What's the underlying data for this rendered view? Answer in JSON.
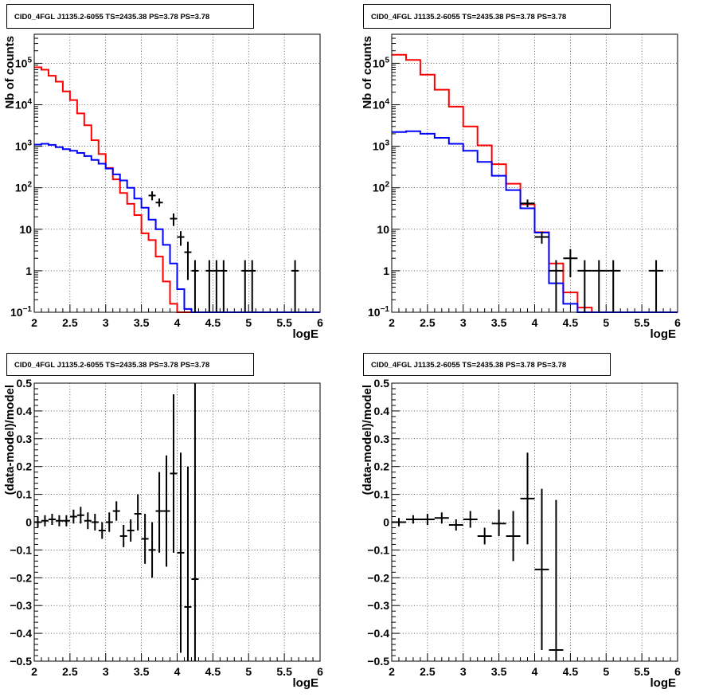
{
  "colors": {
    "data": "#000000",
    "model_total": "#ff0000",
    "model_component": "#0000ff",
    "grid": "#000000"
  },
  "chart_data": [
    {
      "id": "counts_fine",
      "type": "line",
      "title": "CID0_4FGL J1135.2-6055 TS=2435.38 PS=3.78 PS=3.78",
      "xlabel": "logE",
      "ylabel": "Nb of counts",
      "yscale": "log",
      "xlim": [
        2,
        6
      ],
      "ylim": [
        0.1,
        500000
      ],
      "grid": true,
      "xticks": [
        "2",
        "2.5",
        "3",
        "3.5",
        "4",
        "4.5",
        "5",
        "5.5",
        "6"
      ],
      "yticks": [
        {
          "value": 0.1,
          "base": "10",
          "exp": "−1"
        },
        {
          "value": 1,
          "label": "1"
        },
        {
          "value": 10,
          "label": "10"
        },
        {
          "value": 100,
          "base": "10",
          "exp": "2"
        },
        {
          "value": 1000,
          "base": "10",
          "exp": "3"
        },
        {
          "value": 10000,
          "base": "10",
          "exp": "4"
        },
        {
          "value": 100000,
          "base": "10",
          "exp": "5"
        }
      ],
      "bin_edges": [
        2.0,
        2.1,
        2.2,
        2.3,
        2.4,
        2.5,
        2.6,
        2.7,
        2.8,
        2.9,
        3.0,
        3.1,
        3.2,
        3.3,
        3.4,
        3.5,
        3.6,
        3.7,
        3.8,
        3.9,
        4.0,
        4.1,
        4.2,
        4.3,
        4.4,
        4.5,
        4.6,
        4.7,
        4.8,
        4.9,
        5.0,
        5.1,
        5.2,
        5.3,
        5.4,
        5.5,
        5.6,
        5.7,
        5.8,
        5.9,
        6.0
      ],
      "series": [
        {
          "name": "model total",
          "color_key": "model_total",
          "values": [
            80000,
            70000,
            50000,
            36000,
            21000,
            13000,
            6200,
            3200,
            1400,
            650,
            300,
            160,
            75,
            41,
            22,
            8,
            5.5,
            2.2,
            0.55,
            0.16,
            0.1,
            0.1,
            0.1,
            0.1,
            0.1,
            0.1,
            0.1,
            0.1,
            0.1,
            0.1,
            0.1,
            0.1,
            0.1,
            0.1,
            0.1,
            0.1,
            0.1,
            0.1,
            0.1,
            0.1
          ]
        },
        {
          "name": "model component",
          "color_key": "model_component",
          "values": [
            1100,
            1150,
            1080,
            950,
            850,
            780,
            690,
            580,
            470,
            380,
            290,
            210,
            150,
            100,
            55,
            33,
            17,
            10,
            4.2,
            1.5,
            0.36,
            0.12,
            0.1,
            0.1,
            0.1,
            0.1,
            0.1,
            0.1,
            0.1,
            0.1,
            0.1,
            0.1,
            0.1,
            0.1,
            0.1,
            0.1,
            0.1,
            0.1,
            0.1,
            0.1
          ]
        }
      ],
      "data_points": [
        {
          "x": 3.65,
          "y": 65,
          "xerr": 0.05,
          "ylo": 50,
          "yhi": 82
        },
        {
          "x": 3.75,
          "y": 44,
          "xerr": 0.05,
          "ylo": 35,
          "yhi": 55
        },
        {
          "x": 3.95,
          "y": 18,
          "xerr": 0.05,
          "ylo": 12,
          "yhi": 24
        },
        {
          "x": 4.05,
          "y": 6.5,
          "xerr": 0.05,
          "ylo": 4,
          "yhi": 9
        },
        {
          "x": 4.15,
          "y": 2.8,
          "xerr": 0.05,
          "ylo": 0.6,
          "yhi": 5
        },
        {
          "x": 4.25,
          "y": 1.0,
          "xerr": 0.05,
          "ylo": 0.1,
          "yhi": 1.8
        },
        {
          "x": 4.45,
          "y": 1.0,
          "xerr": 0.05,
          "ylo": 0.1,
          "yhi": 1.8
        },
        {
          "x": 4.55,
          "y": 1.0,
          "xerr": 0.05,
          "ylo": 0.1,
          "yhi": 1.8
        },
        {
          "x": 4.65,
          "y": 1.0,
          "xerr": 0.05,
          "ylo": 0.1,
          "yhi": 1.8
        },
        {
          "x": 4.95,
          "y": 1.0,
          "xerr": 0.05,
          "ylo": 0.1,
          "yhi": 1.8
        },
        {
          "x": 5.05,
          "y": 1.0,
          "xerr": 0.05,
          "ylo": 0.1,
          "yhi": 1.8
        },
        {
          "x": 5.65,
          "y": 1.0,
          "xerr": 0.05,
          "ylo": 0.1,
          "yhi": 1.8
        }
      ]
    },
    {
      "id": "counts_coarse",
      "type": "line",
      "title": "CID0_4FGL J1135.2-6055 TS=2435.38 PS=3.78 PS=3.78",
      "xlabel": "logE",
      "ylabel": "Nb of counts",
      "yscale": "log",
      "xlim": [
        2,
        6
      ],
      "ylim": [
        0.1,
        500000
      ],
      "grid": true,
      "xticks": [
        "2",
        "2.5",
        "3",
        "3.5",
        "4",
        "4.5",
        "5",
        "5.5",
        "6"
      ],
      "yticks": [
        {
          "value": 0.1,
          "base": "10",
          "exp": "−1"
        },
        {
          "value": 1,
          "label": "1"
        },
        {
          "value": 10,
          "label": "10"
        },
        {
          "value": 100,
          "base": "10",
          "exp": "2"
        },
        {
          "value": 1000,
          "base": "10",
          "exp": "3"
        },
        {
          "value": 10000,
          "base": "10",
          "exp": "4"
        },
        {
          "value": 100000,
          "base": "10",
          "exp": "5"
        }
      ],
      "bin_edges": [
        2.0,
        2.2,
        2.4,
        2.6,
        2.8,
        3.0,
        3.2,
        3.4,
        3.6,
        3.8,
        4.0,
        4.2,
        4.4,
        4.6,
        4.8,
        5.0,
        5.2,
        5.4,
        5.6,
        5.8,
        6.0
      ],
      "series": [
        {
          "name": "model total",
          "color_key": "model_total",
          "values": [
            160000,
            120000,
            53000,
            23000,
            9000,
            3000,
            1050,
            370,
            125,
            40,
            8.5,
            1.5,
            0.3,
            0.13,
            0.1,
            0.1,
            0.1,
            0.1,
            0.1,
            0.1
          ]
        },
        {
          "name": "model component",
          "color_key": "model_component",
          "values": [
            2200,
            2300,
            2000,
            1600,
            1150,
            780,
            420,
            195,
            88,
            32,
            8.3,
            0.5,
            0.16,
            0.1,
            0.1,
            0.1,
            0.1,
            0.1,
            0.1,
            0.1
          ]
        }
      ],
      "data_points": [
        {
          "x": 3.9,
          "y": 42,
          "xerr": 0.1,
          "ylo": 34,
          "yhi": 52
        },
        {
          "x": 4.1,
          "y": 6.5,
          "xerr": 0.1,
          "ylo": 4.5,
          "yhi": 8.8
        },
        {
          "x": 4.3,
          "y": 1.0,
          "xerr": 0.1,
          "ylo": 0.1,
          "yhi": 1.8
        },
        {
          "x": 4.5,
          "y": 2.0,
          "xerr": 0.1,
          "ylo": 0.7,
          "yhi": 3.3
        },
        {
          "x": 4.7,
          "y": 1.0,
          "xerr": 0.1,
          "ylo": 0.1,
          "yhi": 1.8
        },
        {
          "x": 4.9,
          "y": 1.0,
          "xerr": 0.1,
          "ylo": 0.1,
          "yhi": 1.8
        },
        {
          "x": 5.1,
          "y": 1.0,
          "xerr": 0.1,
          "ylo": 0.1,
          "yhi": 1.8
        },
        {
          "x": 5.7,
          "y": 1.0,
          "xerr": 0.1,
          "ylo": 0.1,
          "yhi": 1.8
        }
      ]
    },
    {
      "id": "residuals_fine",
      "type": "scatter",
      "title": "CID0_4FGL J1135.2-6055 TS=2435.38 PS=3.78 PS=3.78",
      "xlabel": "logE",
      "ylabel": "(data-model)/model",
      "yscale": "linear",
      "xlim": [
        2,
        6
      ],
      "ylim": [
        -0.5,
        0.5
      ],
      "grid": true,
      "xticks": [
        "2",
        "2.5",
        "3",
        "3.5",
        "4",
        "4.5",
        "5",
        "5.5",
        "6"
      ],
      "yticks": [
        {
          "value": -0.5,
          "label": "−0.5"
        },
        {
          "value": -0.4,
          "label": "−0.4"
        },
        {
          "value": -0.3,
          "label": "−0.3"
        },
        {
          "value": -0.2,
          "label": "−0.2"
        },
        {
          "value": -0.1,
          "label": "−0.1"
        },
        {
          "value": 0,
          "label": "0"
        },
        {
          "value": 0.1,
          "label": "0.1"
        },
        {
          "value": 0.2,
          "label": "0.2"
        },
        {
          "value": 0.3,
          "label": "0.3"
        },
        {
          "value": 0.4,
          "label": "0.4"
        },
        {
          "value": 0.5,
          "label": "0.5"
        }
      ],
      "data_points": [
        {
          "x": 2.05,
          "y": 0.0,
          "xerr": 0.05,
          "ylo": -0.02,
          "yhi": 0.02
        },
        {
          "x": 2.15,
          "y": 0.005,
          "xerr": 0.05,
          "ylo": -0.015,
          "yhi": 0.025
        },
        {
          "x": 2.25,
          "y": 0.01,
          "xerr": 0.05,
          "ylo": -0.01,
          "yhi": 0.03
        },
        {
          "x": 2.35,
          "y": 0.005,
          "xerr": 0.05,
          "ylo": -0.015,
          "yhi": 0.025
        },
        {
          "x": 2.45,
          "y": 0.005,
          "xerr": 0.05,
          "ylo": -0.015,
          "yhi": 0.025
        },
        {
          "x": 2.55,
          "y": 0.02,
          "xerr": 0.05,
          "ylo": -0.005,
          "yhi": 0.045
        },
        {
          "x": 2.65,
          "y": 0.025,
          "xerr": 0.05,
          "ylo": -0.005,
          "yhi": 0.055
        },
        {
          "x": 2.75,
          "y": 0.005,
          "xerr": 0.05,
          "ylo": -0.025,
          "yhi": 0.035
        },
        {
          "x": 2.85,
          "y": 0.0,
          "xerr": 0.05,
          "ylo": -0.03,
          "yhi": 0.03
        },
        {
          "x": 2.95,
          "y": -0.03,
          "xerr": 0.05,
          "ylo": -0.06,
          "yhi": 0.0
        },
        {
          "x": 3.05,
          "y": 0.0,
          "xerr": 0.05,
          "ylo": -0.035,
          "yhi": 0.035
        },
        {
          "x": 3.15,
          "y": 0.04,
          "xerr": 0.05,
          "ylo": 0.005,
          "yhi": 0.075
        },
        {
          "x": 3.25,
          "y": -0.05,
          "xerr": 0.05,
          "ylo": -0.09,
          "yhi": -0.01
        },
        {
          "x": 3.35,
          "y": -0.03,
          "xerr": 0.05,
          "ylo": -0.07,
          "yhi": 0.01
        },
        {
          "x": 3.45,
          "y": 0.03,
          "xerr": 0.05,
          "ylo": -0.03,
          "yhi": 0.1
        },
        {
          "x": 3.55,
          "y": -0.06,
          "xerr": 0.05,
          "ylo": -0.15,
          "yhi": 0.03
        },
        {
          "x": 3.65,
          "y": -0.1,
          "xerr": 0.05,
          "ylo": -0.2,
          "yhi": 0.0
        },
        {
          "x": 3.75,
          "y": 0.04,
          "xerr": 0.05,
          "ylo": -0.11,
          "yhi": 0.18
        },
        {
          "x": 3.85,
          "y": 0.04,
          "xerr": 0.05,
          "ylo": -0.16,
          "yhi": 0.24
        },
        {
          "x": 3.95,
          "y": 0.175,
          "xerr": 0.05,
          "ylo": -0.11,
          "yhi": 0.46
        },
        {
          "x": 4.05,
          "y": -0.11,
          "xerr": 0.05,
          "ylo": -0.47,
          "yhi": 0.25
        },
        {
          "x": 4.15,
          "y": -0.305,
          "xerr": 0.05,
          "ylo": -0.5,
          "yhi": 0.2
        },
        {
          "x": 4.25,
          "y": -0.205,
          "xerr": 0.05,
          "ylo": -0.5,
          "yhi": 0.5
        }
      ]
    },
    {
      "id": "residuals_coarse",
      "type": "scatter",
      "title": "CID0_4FGL J1135.2-6055 TS=2435.38 PS=3.78 PS=3.78",
      "xlabel": "logE",
      "ylabel": "(data-model)/model",
      "yscale": "linear",
      "xlim": [
        2,
        6
      ],
      "ylim": [
        -0.5,
        0.5
      ],
      "grid": true,
      "xticks": [
        "2",
        "2.5",
        "3",
        "3.5",
        "4",
        "4.5",
        "5",
        "5.5",
        "6"
      ],
      "yticks": [
        {
          "value": -0.5,
          "label": "−0.5"
        },
        {
          "value": -0.4,
          "label": "−0.4"
        },
        {
          "value": -0.3,
          "label": "−0.3"
        },
        {
          "value": -0.2,
          "label": "−0.2"
        },
        {
          "value": -0.1,
          "label": "−0.1"
        },
        {
          "value": 0,
          "label": "0"
        },
        {
          "value": 0.1,
          "label": "0.1"
        },
        {
          "value": 0.2,
          "label": "0.2"
        },
        {
          "value": 0.3,
          "label": "0.3"
        },
        {
          "value": 0.4,
          "label": "0.4"
        },
        {
          "value": 0.5,
          "label": "0.5"
        }
      ],
      "data_points": [
        {
          "x": 2.1,
          "y": 0.0,
          "xerr": 0.1,
          "ylo": -0.015,
          "yhi": 0.015
        },
        {
          "x": 2.3,
          "y": 0.01,
          "xerr": 0.1,
          "ylo": -0.005,
          "yhi": 0.025
        },
        {
          "x": 2.5,
          "y": 0.01,
          "xerr": 0.1,
          "ylo": -0.01,
          "yhi": 0.03
        },
        {
          "x": 2.7,
          "y": 0.015,
          "xerr": 0.1,
          "ylo": -0.005,
          "yhi": 0.035
        },
        {
          "x": 2.9,
          "y": -0.01,
          "xerr": 0.1,
          "ylo": -0.03,
          "yhi": 0.01
        },
        {
          "x": 3.1,
          "y": 0.01,
          "xerr": 0.1,
          "ylo": -0.02,
          "yhi": 0.04
        },
        {
          "x": 3.3,
          "y": -0.05,
          "xerr": 0.1,
          "ylo": -0.08,
          "yhi": -0.02
        },
        {
          "x": 3.5,
          "y": -0.005,
          "xerr": 0.1,
          "ylo": -0.05,
          "yhi": 0.045
        },
        {
          "x": 3.7,
          "y": -0.05,
          "xerr": 0.1,
          "ylo": -0.14,
          "yhi": 0.04
        },
        {
          "x": 3.9,
          "y": 0.085,
          "xerr": 0.1,
          "ylo": -0.08,
          "yhi": 0.25
        },
        {
          "x": 4.1,
          "y": -0.17,
          "xerr": 0.1,
          "ylo": -0.46,
          "yhi": 0.12
        },
        {
          "x": 4.3,
          "y": -0.46,
          "xerr": 0.1,
          "ylo": -0.5,
          "yhi": 0.08
        }
      ]
    }
  ]
}
